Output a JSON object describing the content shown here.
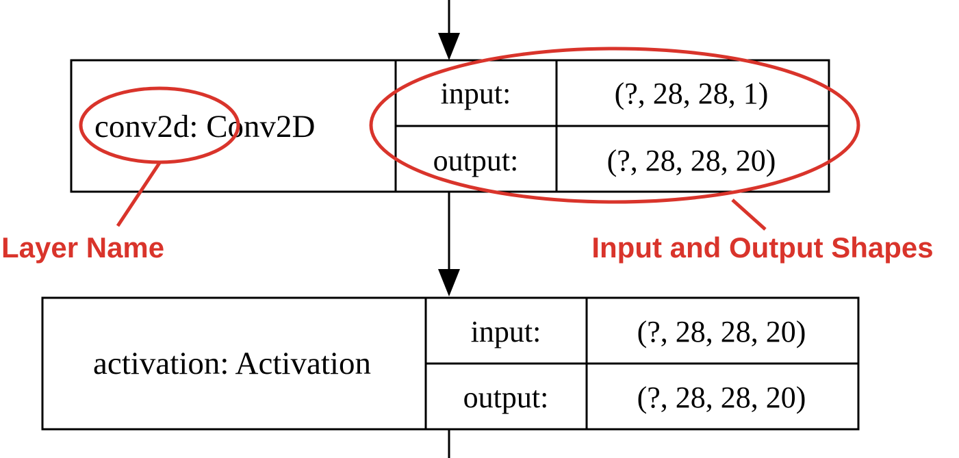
{
  "layers": [
    {
      "name": "conv2d",
      "type": "Conv2D",
      "label": "conv2d: Conv2D",
      "input_label": "input:",
      "input_shape": "(?, 28, 28, 1)",
      "output_label": "output:",
      "output_shape": "(?, 28, 28, 20)"
    },
    {
      "name": "activation",
      "type": "Activation",
      "label": "activation: Activation",
      "input_label": "input:",
      "input_shape": "(?, 28, 28, 20)",
      "output_label": "output:",
      "output_shape": "(?, 28, 28, 20)"
    }
  ],
  "annotations": {
    "layer_name": "Layer Name",
    "io_shapes": "Input and Output Shapes",
    "color": "#d9342b"
  },
  "colors": {
    "line": "#000000",
    "background": "#ffffff"
  }
}
